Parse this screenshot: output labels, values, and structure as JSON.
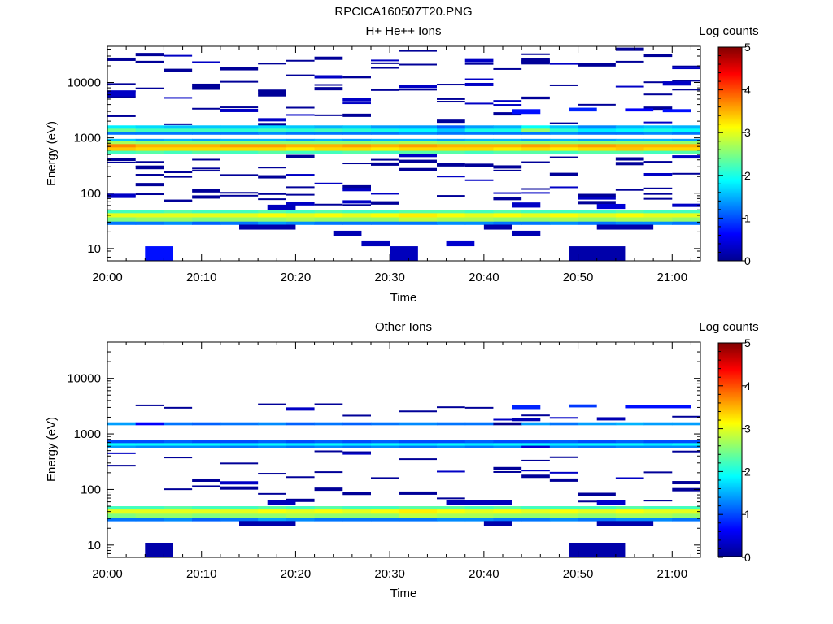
{
  "figure_title": "RPCICA160507T20.PNG",
  "colormap": [
    "#00008f",
    "#0000ff",
    "#00ffff",
    "#ffff00",
    "#ff0000",
    "#800000"
  ],
  "chart_data": [
    {
      "type": "heatmap",
      "title": "H+ He++ Ions",
      "xlabel": "Time",
      "ylabel": "Energy (eV)",
      "colorbar_label": "Log counts",
      "colorbar_range": [
        0,
        5
      ],
      "colorbar_ticks": [
        "0",
        "1",
        "2",
        "3",
        "4",
        "5"
      ],
      "ylog": true,
      "ylim": [
        6,
        45000
      ],
      "y_ticks": [
        {
          "v": 10,
          "label": "10"
        },
        {
          "v": 100,
          "label": "100"
        },
        {
          "v": 1000,
          "label": "1000"
        },
        {
          "v": 10000,
          "label": "10000"
        }
      ],
      "xlim": [
        "20:00",
        "21:03"
      ],
      "x_ticks": [
        "20:00",
        "20:10",
        "20:20",
        "20:30",
        "20:40",
        "20:50",
        "21:00"
      ],
      "time_bins": [
        "20:00",
        "20:03",
        "20:06",
        "20:09",
        "20:12",
        "20:16",
        "20:19",
        "20:22",
        "20:25",
        "20:28",
        "20:31",
        "20:35",
        "20:38",
        "20:41",
        "20:44",
        "20:47",
        "20:50",
        "20:54",
        "20:57",
        "21:00"
      ],
      "bands": [
        {
          "e_lo": 27,
          "e_hi": 31,
          "v": [
            1.2,
            1.2,
            1.3,
            1.1,
            1.2,
            1.4,
            1.3,
            1.2,
            1.2,
            1.2,
            1.2,
            1.3,
            1.3,
            1.2,
            1.2,
            1.3,
            1.2,
            1.3,
            1.3,
            1.2
          ]
        },
        {
          "e_lo": 31,
          "e_hi": 37,
          "v": [
            2.5,
            2.6,
            2.6,
            2.5,
            2.6,
            2.6,
            2.7,
            2.6,
            2.6,
            2.6,
            2.8,
            2.7,
            2.7,
            2.6,
            2.6,
            2.7,
            2.6,
            2.7,
            2.7,
            2.6
          ]
        },
        {
          "e_lo": 37,
          "e_hi": 44,
          "v": [
            3.0,
            3.0,
            3.0,
            3.0,
            3.0,
            3.1,
            3.0,
            3.1,
            3.0,
            3.1,
            3.2,
            3.1,
            3.0,
            3.1,
            3.0,
            3.1,
            3.0,
            3.1,
            3.0,
            3.0
          ]
        },
        {
          "e_lo": 44,
          "e_hi": 50,
          "v": [
            2.2,
            2.2,
            2.3,
            2.2,
            2.2,
            2.3,
            2.2,
            2.3,
            2.2,
            2.2,
            2.3,
            2.3,
            2.2,
            2.3,
            2.2,
            2.2,
            2.2,
            2.3,
            2.2,
            2.2
          ]
        },
        {
          "e_lo": 520,
          "e_hi": 590,
          "v": [
            2.2,
            2.3,
            2.2,
            2.3,
            2.2,
            2.3,
            2.2,
            2.2,
            2.3,
            2.2,
            2.3,
            2.3,
            2.2,
            2.3,
            2.3,
            2.2,
            2.3,
            2.3,
            2.2,
            2.3
          ]
        },
        {
          "e_lo": 590,
          "e_hi": 680,
          "v": [
            3.4,
            3.3,
            3.3,
            3.3,
            3.3,
            3.3,
            3.2,
            3.3,
            3.3,
            3.2,
            3.3,
            3.3,
            3.3,
            3.2,
            3.3,
            3.2,
            3.3,
            3.4,
            3.3,
            3.3
          ]
        },
        {
          "e_lo": 680,
          "e_hi": 780,
          "v": [
            3.7,
            3.5,
            3.5,
            3.5,
            3.6,
            3.6,
            3.5,
            3.5,
            3.6,
            3.5,
            3.6,
            3.5,
            3.5,
            3.5,
            3.6,
            3.5,
            3.6,
            3.5,
            3.5,
            3.5
          ]
        },
        {
          "e_lo": 780,
          "e_hi": 880,
          "v": [
            2.7,
            2.6,
            2.6,
            2.6,
            2.6,
            2.6,
            2.6,
            2.6,
            2.6,
            2.6,
            2.7,
            2.6,
            2.6,
            2.6,
            2.6,
            2.6,
            2.6,
            2.6,
            2.6,
            2.6
          ]
        },
        {
          "e_lo": 880,
          "e_hi": 960,
          "v": [
            1.6,
            1.4,
            1.5,
            1.4,
            1.5,
            1.5,
            1.4,
            1.5,
            1.4,
            1.5,
            1.5,
            1.4,
            1.5,
            1.5,
            1.4,
            1.5,
            1.4,
            1.5,
            1.5,
            1.4
          ]
        },
        {
          "e_lo": 1150,
          "e_hi": 1300,
          "v": [
            1.2,
            1.2,
            1.2,
            1.2,
            1.2,
            1.3,
            1.2,
            1.2,
            1.2,
            1.2,
            1.3,
            1.2,
            1.2,
            1.2,
            1.2,
            1.3,
            1.2,
            1.2,
            1.3,
            1.2
          ]
        },
        {
          "e_lo": 1300,
          "e_hi": 1480,
          "v": [
            2.4,
            2.2,
            2.2,
            2.2,
            2.1,
            2.2,
            2.1,
            2.2,
            2.1,
            2.0,
            1.9,
            1.6,
            2.0,
            2.0,
            2.6,
            2.1,
            1.8,
            1.9,
            2.0,
            1.9
          ]
        },
        {
          "e_lo": 1480,
          "e_hi": 1680,
          "v": [
            1.8,
            1.7,
            1.6,
            1.6,
            1.6,
            1.7,
            1.6,
            1.5,
            1.6,
            1.4,
            1.4,
            1.1,
            1.4,
            1.5,
            1.9,
            1.6,
            1.3,
            1.5,
            1.6,
            1.5
          ]
        }
      ],
      "patches": [
        {
          "t0": "20:04",
          "t1": "20:07",
          "e_lo": 6,
          "e_hi": 11,
          "v": 0.7
        },
        {
          "t0": "20:27",
          "t1": "20:30",
          "e_lo": 11,
          "e_hi": 14,
          "v": 0.25
        },
        {
          "t0": "20:30",
          "t1": "20:33",
          "e_lo": 6,
          "e_hi": 11,
          "v": 0.25
        },
        {
          "t0": "20:36",
          "t1": "20:39",
          "e_lo": 11,
          "e_hi": 14,
          "v": 0.35
        },
        {
          "t0": "20:49",
          "t1": "20:55",
          "e_lo": 6,
          "e_hi": 11,
          "v": 0.15
        },
        {
          "t0": "20:24",
          "t1": "20:27",
          "e_lo": 17,
          "e_hi": 21,
          "v": 0.2
        },
        {
          "t0": "20:43",
          "t1": "20:46",
          "e_lo": 17,
          "e_hi": 21,
          "v": 0.2
        },
        {
          "t0": "20:14",
          "t1": "20:20",
          "e_lo": 22,
          "e_hi": 27,
          "v": 0.15
        },
        {
          "t0": "20:40",
          "t1": "20:43",
          "e_lo": 22,
          "e_hi": 27,
          "v": 0.15
        },
        {
          "t0": "20:52",
          "t1": "20:58",
          "e_lo": 22,
          "e_hi": 27,
          "v": 0.15
        },
        {
          "t0": "20:00",
          "t1": "20:03",
          "e_lo": 82,
          "e_hi": 98,
          "v": 0.3
        },
        {
          "t0": "20:17",
          "t1": "20:20",
          "e_lo": 50,
          "e_hi": 62,
          "v": 0.25
        },
        {
          "t0": "20:52",
          "t1": "20:55",
          "e_lo": 52,
          "e_hi": 64,
          "v": 0.4
        },
        {
          "t0": "20:43",
          "t1": "20:46",
          "e_lo": 55,
          "e_hi": 68,
          "v": 0.3
        },
        {
          "t0": "20:00",
          "t1": "20:03",
          "e_lo": 5600,
          "e_hi": 7200,
          "v": 0.3
        },
        {
          "t0": "20:59",
          "t1": "21:02",
          "e_lo": 8800,
          "e_hi": 10500,
          "v": 0.3
        },
        {
          "t0": "20:43",
          "t1": "20:46",
          "e_lo": 2700,
          "e_hi": 3300,
          "v": 0.7
        },
        {
          "t0": "20:49",
          "t1": "20:52",
          "e_lo": 3000,
          "e_hi": 3500,
          "v": 0.8
        },
        {
          "t0": "20:55",
          "t1": "20:58",
          "e_lo": 3000,
          "e_hi": 3400,
          "v": 0.6
        },
        {
          "t0": "20:59",
          "t1": "21:02",
          "e_lo": 2900,
          "e_hi": 3300,
          "v": 0.7
        }
      ],
      "lines_seed": 11
    },
    {
      "type": "heatmap",
      "title": "Other Ions",
      "xlabel": "Time",
      "ylabel": "Energy (eV)",
      "colorbar_label": "Log counts",
      "colorbar_range": [
        0,
        5
      ],
      "colorbar_ticks": [
        "0",
        "1",
        "2",
        "3",
        "4",
        "5"
      ],
      "ylog": true,
      "ylim": [
        6,
        45000
      ],
      "y_ticks": [
        {
          "v": 10,
          "label": "10"
        },
        {
          "v": 100,
          "label": "100"
        },
        {
          "v": 1000,
          "label": "1000"
        },
        {
          "v": 10000,
          "label": "10000"
        }
      ],
      "xlim": [
        "20:00",
        "21:03"
      ],
      "x_ticks": [
        "20:00",
        "20:10",
        "20:20",
        "20:30",
        "20:40",
        "20:50",
        "21:00"
      ],
      "time_bins": [
        "20:00",
        "20:03",
        "20:06",
        "20:09",
        "20:12",
        "20:16",
        "20:19",
        "20:22",
        "20:25",
        "20:28",
        "20:31",
        "20:35",
        "20:38",
        "20:41",
        "20:44",
        "20:47",
        "20:50",
        "20:54",
        "20:57",
        "21:00"
      ],
      "bands": [
        {
          "e_lo": 27,
          "e_hi": 31,
          "v": [
            1.2,
            1.2,
            1.3,
            1.1,
            1.2,
            1.4,
            1.3,
            1.2,
            1.2,
            1.2,
            1.2,
            1.3,
            1.3,
            1.2,
            1.2,
            1.3,
            1.2,
            1.3,
            1.3,
            1.2
          ]
        },
        {
          "e_lo": 31,
          "e_hi": 37,
          "v": [
            2.5,
            2.6,
            2.6,
            2.5,
            2.6,
            2.6,
            2.7,
            2.6,
            2.6,
            2.6,
            2.8,
            2.7,
            2.7,
            2.6,
            2.6,
            2.7,
            2.6,
            2.7,
            2.7,
            2.6
          ]
        },
        {
          "e_lo": 37,
          "e_hi": 44,
          "v": [
            3.0,
            3.0,
            3.0,
            3.0,
            3.0,
            3.1,
            3.0,
            3.1,
            3.0,
            3.1,
            3.2,
            3.1,
            3.0,
            3.1,
            3.0,
            3.1,
            3.0,
            3.1,
            3.0,
            3.0
          ]
        },
        {
          "e_lo": 44,
          "e_hi": 50,
          "v": [
            2.2,
            2.2,
            2.3,
            2.2,
            2.2,
            2.3,
            2.2,
            2.3,
            2.2,
            2.2,
            2.3,
            2.3,
            2.2,
            2.3,
            2.2,
            2.2,
            2.2,
            2.3,
            2.2,
            2.2
          ]
        },
        {
          "e_lo": 560,
          "e_hi": 620,
          "v": [
            1.4,
            1.3,
            1.3,
            1.3,
            1.2,
            1.3,
            1.2,
            1.3,
            1.2,
            1.3,
            1.2,
            1.3,
            1.2,
            1.3,
            0.4,
            1.3,
            1.2,
            1.3,
            1.3,
            1.3
          ]
        },
        {
          "e_lo": 620,
          "e_hi": 690,
          "v": [
            1.9,
            1.9,
            1.9,
            1.9,
            1.8,
            1.9,
            1.8,
            1.9,
            1.8,
            1.9,
            1.8,
            1.9,
            1.8,
            1.9,
            1.9,
            1.8,
            1.9,
            1.9,
            1.8,
            1.9
          ]
        },
        {
          "e_lo": 690,
          "e_hi": 770,
          "v": [
            1.0,
            1.0,
            1.1,
            1.0,
            1.0,
            1.1,
            1.0,
            1.1,
            1.0,
            1.1,
            1.0,
            1.0,
            1.1,
            1.0,
            1.0,
            1.1,
            1.0,
            1.1,
            1.0,
            1.0
          ]
        },
        {
          "e_lo": 1450,
          "e_hi": 1620,
          "v": [
            1.4,
            0.6,
            1.2,
            1.1,
            1.2,
            1.3,
            1.1,
            1.2,
            1.1,
            1.2,
            1.3,
            1.2,
            1.2,
            0.0,
            1.4,
            1.2,
            1.4,
            1.5,
            1.4,
            1.4
          ]
        }
      ],
      "patches": [
        {
          "t0": "20:04",
          "t1": "20:07",
          "e_lo": 6,
          "e_hi": 11,
          "v": 0.15
        },
        {
          "t0": "20:49",
          "t1": "20:55",
          "e_lo": 6,
          "e_hi": 11,
          "v": 0.15
        },
        {
          "t0": "20:14",
          "t1": "20:20",
          "e_lo": 22,
          "e_hi": 27,
          "v": 0.15
        },
        {
          "t0": "20:40",
          "t1": "20:43",
          "e_lo": 22,
          "e_hi": 27,
          "v": 0.15
        },
        {
          "t0": "20:52",
          "t1": "20:58",
          "e_lo": 22,
          "e_hi": 27,
          "v": 0.15
        },
        {
          "t0": "20:17",
          "t1": "20:20",
          "e_lo": 52,
          "e_hi": 64,
          "v": 0.25
        },
        {
          "t0": "20:36",
          "t1": "20:43",
          "e_lo": 52,
          "e_hi": 64,
          "v": 0.25
        },
        {
          "t0": "20:52",
          "t1": "20:55",
          "e_lo": 52,
          "e_hi": 64,
          "v": 0.35
        },
        {
          "t0": "20:43",
          "t1": "20:46",
          "e_lo": 2800,
          "e_hi": 3300,
          "v": 0.8
        },
        {
          "t0": "20:49",
          "t1": "20:52",
          "e_lo": 3000,
          "e_hi": 3400,
          "v": 0.9
        },
        {
          "t0": "20:55",
          "t1": "21:02",
          "e_lo": 2900,
          "e_hi": 3300,
          "v": 0.7
        },
        {
          "t0": "20:43",
          "t1": "20:46",
          "e_lo": 1700,
          "e_hi": 1900,
          "v": 0.2
        },
        {
          "t0": "20:52",
          "t1": "20:55",
          "e_lo": 1750,
          "e_hi": 2000,
          "v": 0.2
        }
      ],
      "lines_seed": 29
    }
  ]
}
